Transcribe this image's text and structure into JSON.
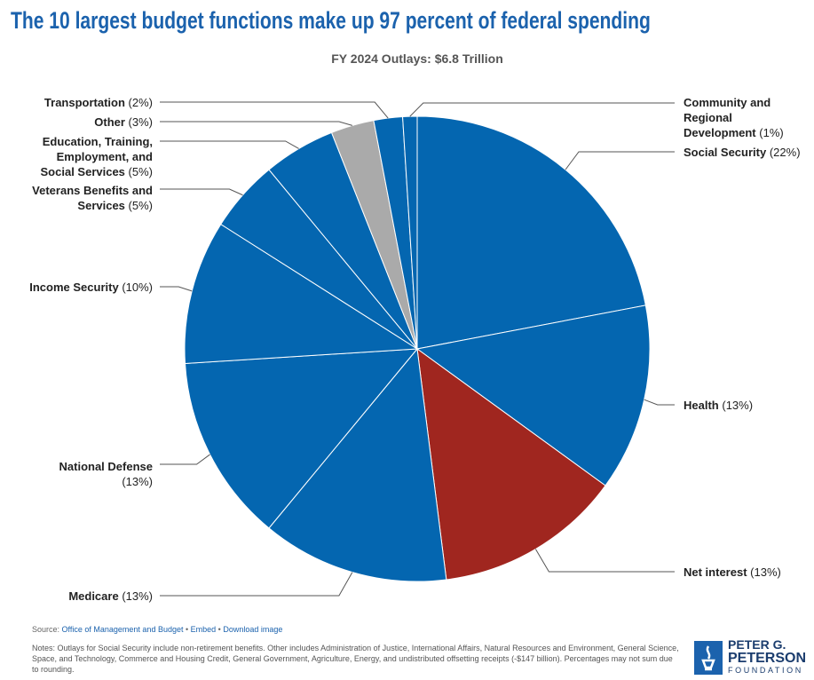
{
  "chart_data": {
    "type": "pie",
    "title": "The 10 largest budget functions make up 97 percent of federal spending",
    "subtitle": "FY 2024 Outlays: $6.8 Trillion",
    "categories": [
      "Social Security",
      "Health",
      "Net interest",
      "Medicare",
      "National Defense",
      "Income Security",
      "Veterans Benefits and Services",
      "Education, Training, Employment, and Social Services",
      "Other",
      "Transportation",
      "Community and Regional Development"
    ],
    "values": [
      22,
      13,
      13,
      13,
      13,
      10,
      5,
      5,
      3,
      2,
      1
    ],
    "value_labels": [
      "(22%)",
      "(13%)",
      "(13%)",
      "(13%)",
      "(13%)",
      "(10%)",
      "(5%)",
      "(5%)",
      "(3%)",
      "(2%)",
      "(1%)"
    ],
    "colors": [
      "#0466b0",
      "#0466b0",
      "#a0261f",
      "#0466b0",
      "#0466b0",
      "#0466b0",
      "#0466b0",
      "#0466b0",
      "#aaaaaa",
      "#0466b0",
      "#0466b0"
    ]
  },
  "source": {
    "label": "Source:",
    "links": [
      "Office of Management and Budget",
      "Embed",
      "Download image"
    ]
  },
  "notes": "Notes: Outlays for Social Security include non-retirement benefits. Other includes Administration of Justice, International Affairs, Natural Resources and Environment, General Science, Space, and Technology, Commerce and Housing Credit, General Government, Agriculture, Energy, and undistributed offsetting receipts (-$147 billion). Percentages may not sum due to rounding.",
  "logo": [
    "PETER G.",
    "PETERSON",
    "FOUNDATION"
  ]
}
